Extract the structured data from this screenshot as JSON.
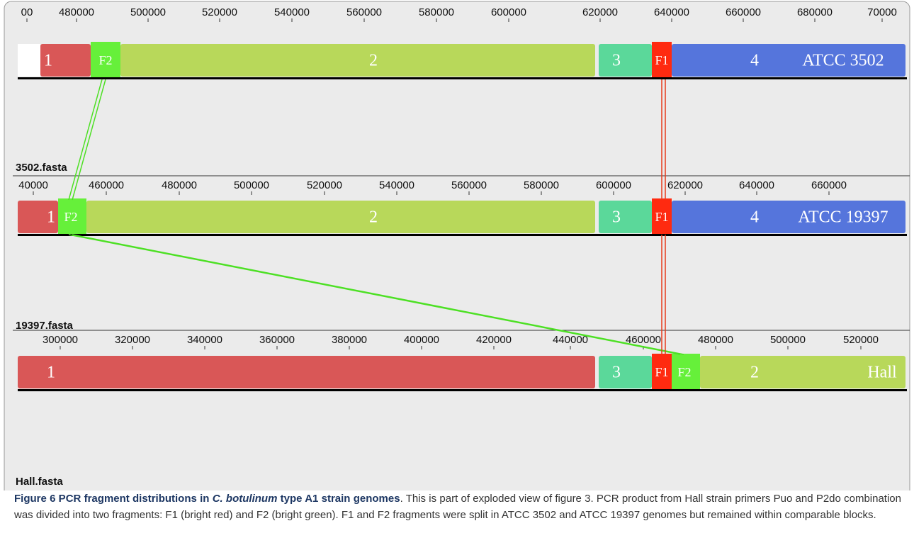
{
  "tracks": [
    {
      "ticks": [
        "00",
        "480000",
        "500000",
        "520000",
        "540000",
        "560000",
        "580000",
        "600000",
        "620000",
        "640000",
        "660000",
        "680000",
        "70000"
      ],
      "blocks": [
        "1",
        "F2",
        "2",
        "3",
        "F1",
        "4"
      ],
      "strain": "ATCC 3502",
      "file": "3502.fasta"
    },
    {
      "ticks": [
        "40000",
        "460000",
        "480000",
        "500000",
        "520000",
        "540000",
        "560000",
        "580000",
        "600000",
        "620000",
        "640000",
        "660000"
      ],
      "blocks": [
        "1",
        "F2",
        "2",
        "3",
        "F1",
        "4"
      ],
      "strain": "ATCC 19397",
      "file": "19397.fasta"
    },
    {
      "ticks": [
        "300000",
        "320000",
        "340000",
        "360000",
        "380000",
        "400000",
        "420000",
        "440000",
        "460000",
        "480000",
        "500000",
        "520000"
      ],
      "blocks": [
        "1",
        "3",
        "F1",
        "F2",
        "2"
      ],
      "strain": "Hall",
      "file": "Hall.fasta"
    }
  ],
  "caption": {
    "label": "Figure 6",
    "title_a": " PCR fragment distributions in ",
    "title_italic": "C. botulinum",
    "title_b": " type A1 strain genomes",
    "text": ". This is part of exploded view of figure 3. PCR product from Hall strain primers Puo and P2do combination was divided into two fragments: F1 (bright red) and F2 (bright green). F1 and F2 fragments were split in ATCC 3502 and ATCC 19397 genomes but remained within comparable blocks."
  }
}
